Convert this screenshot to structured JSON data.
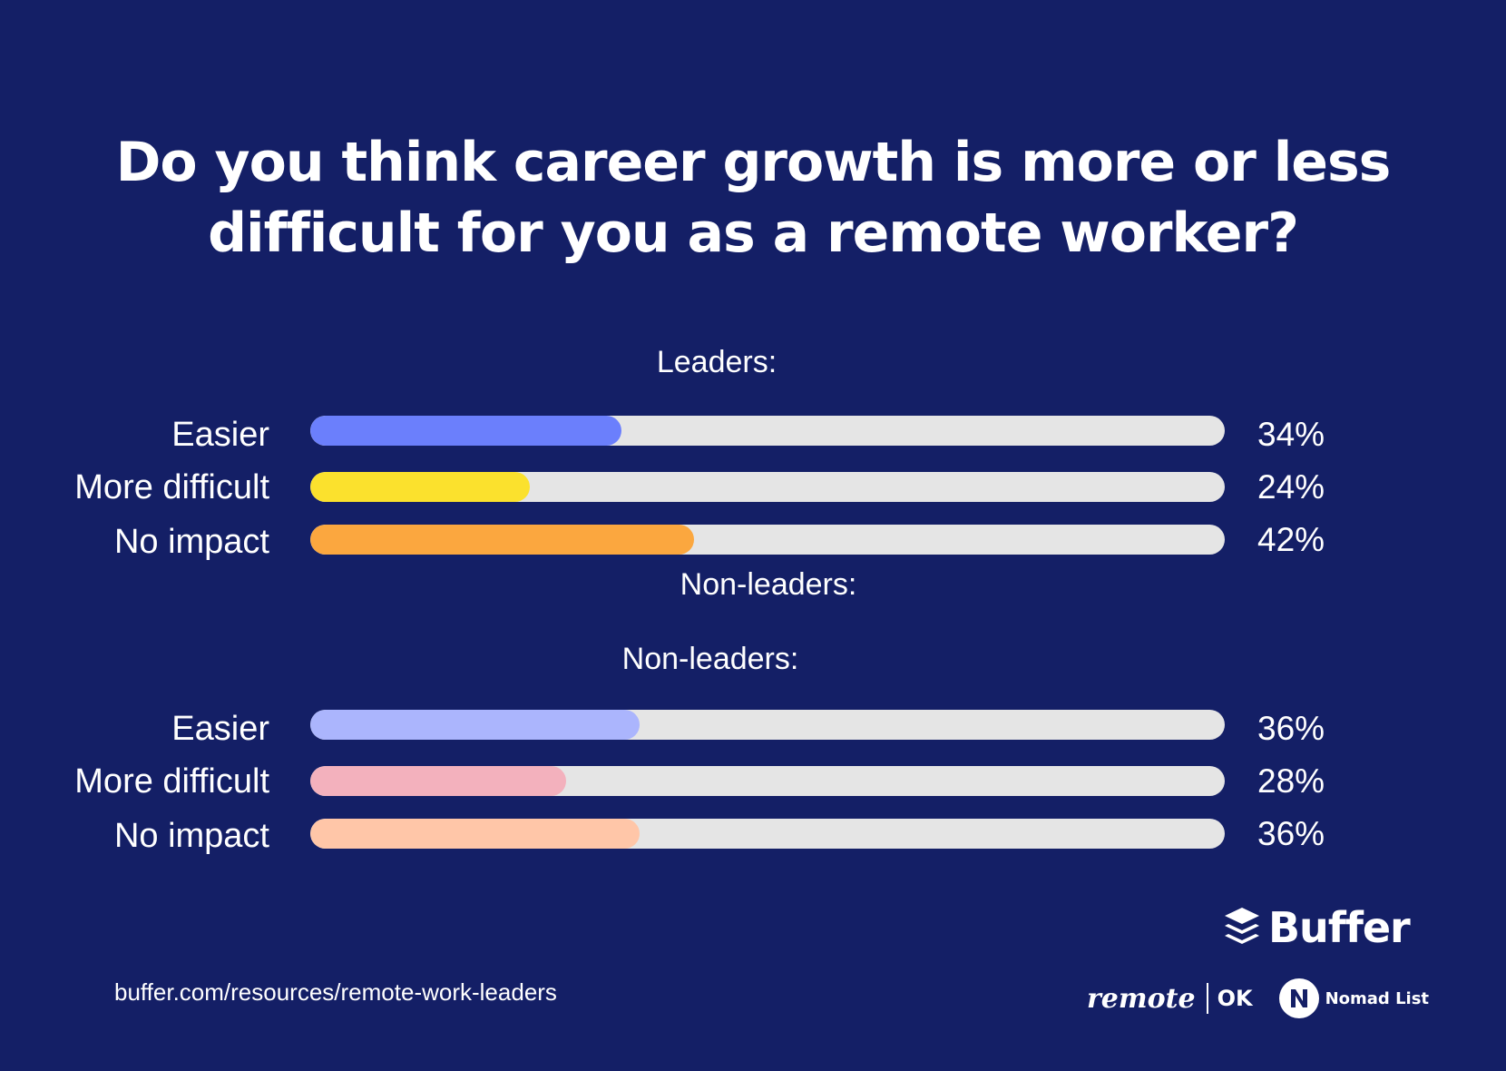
{
  "title": {
    "line1": "Do you think career growth is more or less",
    "line2": "difficult for you as a remote worker?"
  },
  "sections": [
    {
      "heading": "Leaders:",
      "rows": [
        {
          "label": "Easier",
          "value": 34,
          "value_label": "34%",
          "color": "#6b7ffc"
        },
        {
          "label": "More difficult",
          "value": 24,
          "value_label": "24%",
          "color": "#fbe12d"
        },
        {
          "label": "No impact",
          "value": 42,
          "value_label": "42%",
          "color": "#fba73f"
        }
      ]
    },
    {
      "heading": "Non-leaders:",
      "rows": [
        {
          "label": "Easier",
          "value": 36,
          "value_label": "36%",
          "color": "#abb5fd"
        },
        {
          "label": "More difficult",
          "value": 28,
          "value_label": "28%",
          "color": "#f3b1bd"
        },
        {
          "label": "No impact",
          "value": 36,
          "value_label": "36%",
          "color": "#ffc6a8"
        }
      ]
    }
  ],
  "stray_heading": "Non-leaders:",
  "source": "buffer.com/resources/remote-work-leaders",
  "logos": {
    "buffer": "Buffer",
    "remote": "remote",
    "ok": "OK",
    "nomad": "Nomad List"
  },
  "colors": {
    "background": "#141f66",
    "track": "#e5e5e5",
    "text": "#ffffff"
  },
  "chart_data": {
    "type": "bar",
    "title": "Do you think career growth is more or less difficult for you as a remote worker?",
    "categories": [
      "Easier",
      "More difficult",
      "No impact"
    ],
    "series": [
      {
        "name": "Leaders",
        "values": [
          34,
          24,
          42
        ]
      },
      {
        "name": "Non-leaders",
        "values": [
          36,
          28,
          36
        ]
      }
    ],
    "xlim": [
      0,
      100
    ],
    "unit": "%"
  }
}
